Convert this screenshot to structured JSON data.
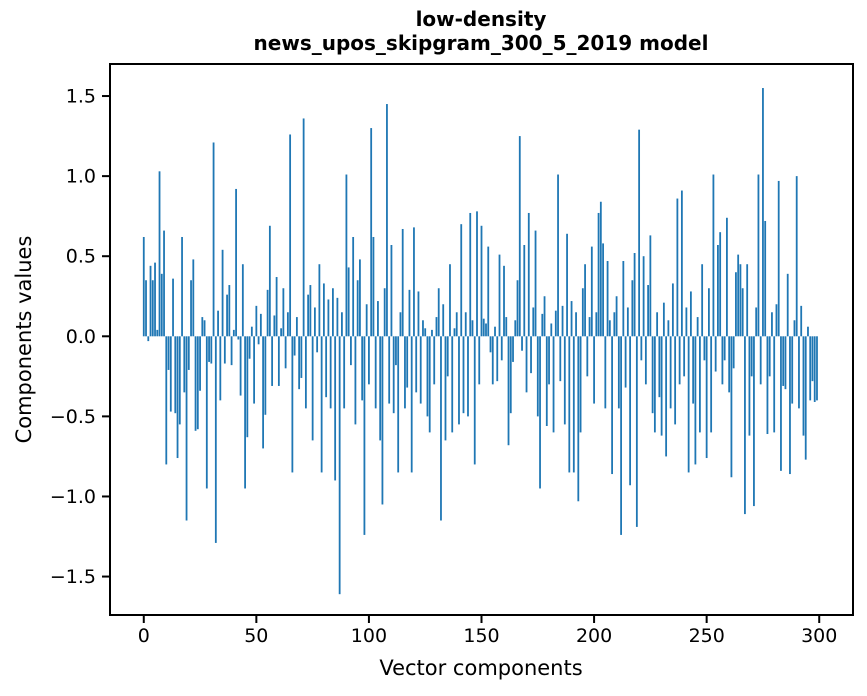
{
  "chart_data": {
    "type": "bar",
    "title_lines": [
      "low-density",
      "news_upos_skipgram_300_5_2019 model"
    ],
    "xlabel": "Vector components",
    "ylabel": "Components values",
    "grid": false,
    "legend": null,
    "bar_color": "#1f77b4",
    "frame_color": "#000000",
    "background_color": "#ffffff",
    "xlim": [
      -15,
      315
    ],
    "ylim": [
      -1.74,
      1.7
    ],
    "xticks": {
      "values": [
        0,
        50,
        100,
        150,
        200,
        250,
        300
      ],
      "labels": [
        "0",
        "50",
        "100",
        "150",
        "200",
        "250",
        "300"
      ]
    },
    "yticks": {
      "values": [
        -1.5,
        -1.0,
        -0.5,
        0.0,
        0.5,
        1.0,
        1.5
      ],
      "labels": [
        "−1.5",
        "−1.0",
        "−0.5",
        "0.0",
        "0.5",
        "1.0",
        "1.5"
      ]
    },
    "x_is_index": true,
    "values": [
      0.62,
      0.35,
      -0.03,
      0.44,
      0.35,
      0.46,
      0.04,
      1.03,
      0.39,
      0.66,
      -0.8,
      -0.21,
      -0.47,
      0.36,
      -0.48,
      -0.76,
      -0.55,
      0.62,
      -0.35,
      -1.15,
      -0.21,
      0.35,
      0.48,
      -0.59,
      -0.58,
      -0.34,
      0.12,
      0.1,
      -0.95,
      -0.16,
      -0.17,
      1.21,
      -1.29,
      0.16,
      -0.4,
      0.54,
      -0.17,
      0.26,
      0.32,
      -0.18,
      0.04,
      0.92,
      -0.02,
      -0.37,
      0.45,
      -0.95,
      -0.63,
      -0.14,
      0.06,
      -0.42,
      0.19,
      -0.05,
      0.14,
      -0.7,
      -0.49,
      0.29,
      0.69,
      -0.31,
      0.13,
      0.37,
      -0.31,
      0.05,
      0.3,
      -0.2,
      0.15,
      1.26,
      -0.85,
      -0.12,
      0.12,
      -0.33,
      -0.26,
      1.36,
      -0.45,
      0.26,
      0.32,
      -0.65,
      0.18,
      -0.1,
      0.45,
      -0.85,
      0.33,
      -0.38,
      0.23,
      -0.45,
      0.3,
      -0.9,
      0.24,
      -1.61,
      0.15,
      -0.45,
      1.01,
      0.43,
      -0.18,
      0.62,
      -0.55,
      0.35,
      0.48,
      -0.4,
      -1.24,
      0.2,
      -0.3,
      1.3,
      0.62,
      -0.45,
      0.22,
      -0.65,
      -1.05,
      0.3,
      1.45,
      -0.42,
      0.57,
      -0.48,
      -0.18,
      -0.85,
      0.15,
      0.67,
      -0.45,
      -0.32,
      0.29,
      -0.85,
      0.68,
      -0.35,
      0.28,
      -0.42,
      0.1,
      0.05,
      -0.5,
      -0.6,
      0.04,
      -0.3,
      0.12,
      0.3,
      -1.15,
      0.2,
      -0.65,
      -0.25,
      0.45,
      -0.6,
      0.05,
      0.15,
      -0.55,
      0.7,
      -0.48,
      0.15,
      -0.5,
      0.77,
      0.1,
      -0.8,
      0.78,
      -0.3,
      0.69,
      0.11,
      0.08,
      0.56,
      -0.1,
      -0.3,
      0.06,
      -0.28,
      0.51,
      -0.15,
      0.44,
      0.12,
      -0.68,
      -0.48,
      -0.16,
      0.1,
      0.35,
      1.25,
      -0.09,
      0.57,
      -0.35,
      0.77,
      -0.23,
      0.18,
      0.66,
      -0.5,
      -0.95,
      0.14,
      0.25,
      -0.56,
      -0.3,
      0.08,
      -0.6,
      0.16,
      1.01,
      -0.28,
      0.19,
      -0.55,
      0.64,
      -0.85,
      0.22,
      -0.85,
      0.15,
      -1.03,
      -0.6,
      0.3,
      0.45,
      -0.25,
      0.12,
      0.56,
      -0.42,
      0.15,
      0.77,
      0.84,
      0.58,
      -0.45,
      0.47,
      0.1,
      -0.86,
      0.15,
      0.25,
      -0.45,
      -1.24,
      0.47,
      -0.32,
      0.18,
      -0.93,
      0.35,
      0.52,
      -1.19,
      1.29,
      -0.15,
      0.5,
      -0.3,
      0.32,
      0.63,
      -0.48,
      -0.6,
      0.15,
      -0.38,
      -0.62,
      0.21,
      -0.75,
      0.1,
      -0.45,
      0.33,
      -0.55,
      0.86,
      -0.3,
      0.91,
      -0.25,
      0.18,
      -0.85,
      0.28,
      -0.42,
      -0.8,
      0.12,
      -0.6,
      0.45,
      -0.15,
      -0.76,
      0.3,
      -0.6,
      1.01,
      -0.22,
      0.57,
      0.65,
      -0.3,
      -0.15,
      0.74,
      -0.35,
      -0.88,
      -0.2,
      0.4,
      0.51,
      0.45,
      0.3,
      -1.11,
      0.45,
      -0.62,
      -0.25,
      -1.06,
      0.18,
      1.01,
      -0.3,
      1.55,
      0.72,
      -0.61,
      -0.25,
      0.15,
      -0.6,
      0.2,
      0.97,
      -0.84,
      -0.31,
      -0.33,
      0.39,
      -0.86,
      -0.42,
      0.1,
      1.0,
      -0.45,
      0.19,
      -0.62,
      -0.77,
      0.06,
      -0.4,
      -0.28,
      -0.41,
      -0.4
    ]
  }
}
